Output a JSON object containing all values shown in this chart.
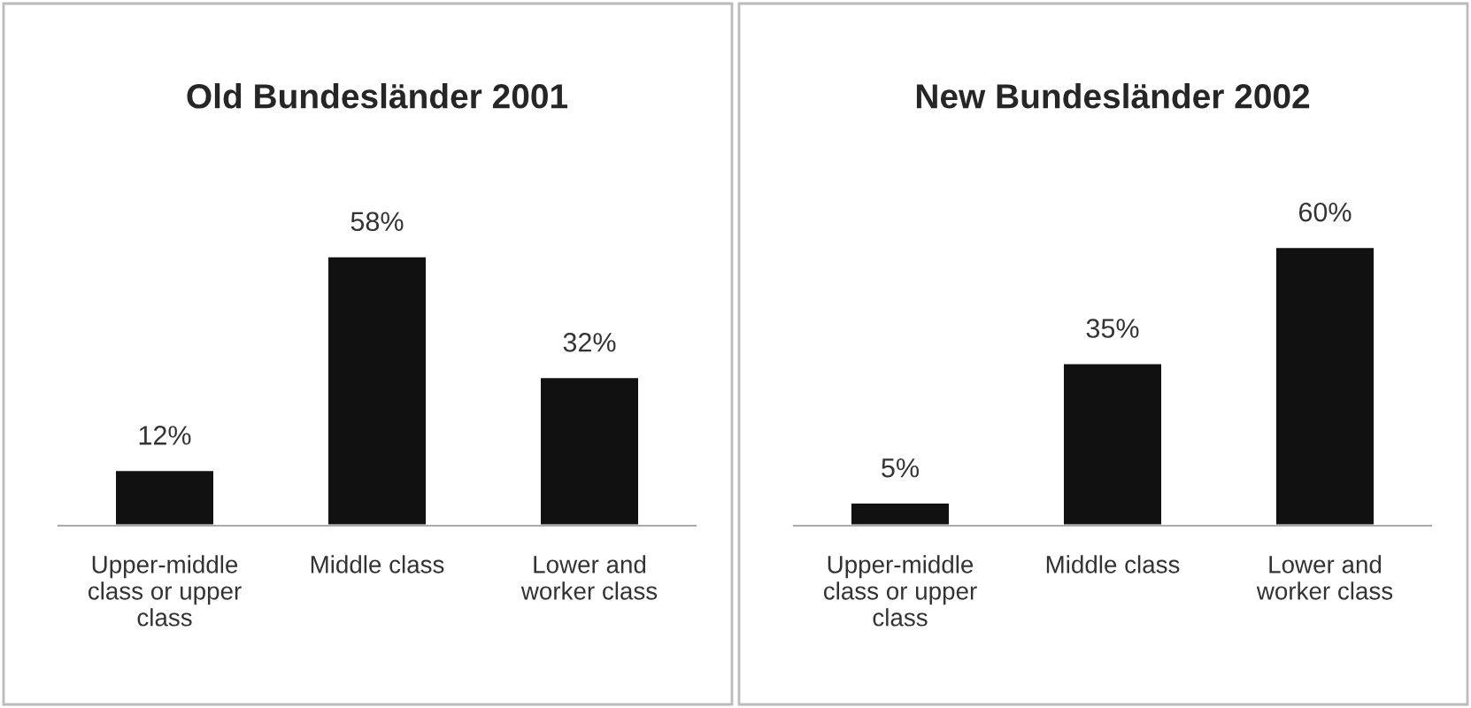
{
  "chart_data": [
    {
      "type": "bar",
      "title": "Old Bundesländer 2001",
      "categories": [
        "Upper-middle class or upper class",
        "Middle class",
        "Lower and worker class"
      ],
      "values": [
        12,
        58,
        32
      ],
      "value_labels": [
        "12%",
        "58%",
        "32%"
      ],
      "color": "#111111"
    },
    {
      "type": "bar",
      "title": "New Bundesländer 2002",
      "categories": [
        "Upper-middle class or upper class",
        "Middle class",
        "Lower and worker class"
      ],
      "values": [
        5,
        35,
        60
      ],
      "value_labels": [
        "5%",
        "35%",
        "60%"
      ],
      "color": "#111111"
    }
  ]
}
